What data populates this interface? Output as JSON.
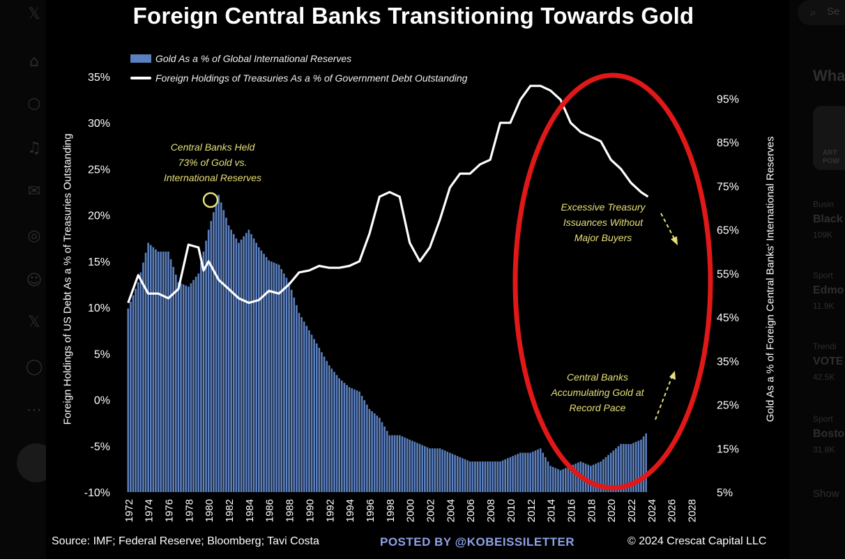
{
  "background_ui": {
    "left_rail_icons": [
      "x-logo",
      "home",
      "search",
      "notifications",
      "messages",
      "grok",
      "communities",
      "x-premium",
      "profile",
      "more"
    ],
    "search_placeholder": "Se",
    "side_heading": "Wha",
    "thumb_text": "ART\nPOW",
    "trends": [
      {
        "category": "Busin",
        "name": "Black",
        "count": "109K"
      },
      {
        "category": "Sport",
        "name": "Edmo",
        "count": "11.9K"
      },
      {
        "category": "Trendi",
        "name": "VOTE",
        "count": "42.5K"
      },
      {
        "category": "Sport",
        "name": "Bosto",
        "count": "31.8K"
      }
    ],
    "show_more": "Show"
  },
  "chart_data": {
    "type": "bar+line",
    "title": "Foreign Central Banks Transitioning Towards Gold",
    "legend": [
      {
        "label": "Gold As a % of Global International Reserves",
        "kind": "bar",
        "color": "#5b80c0"
      },
      {
        "label": "Foreign Holdings of Treasuries As a % of Government Debt Outstanding",
        "kind": "line",
        "color": "#ffffff"
      }
    ],
    "legend_position": "top-left",
    "x_tick_labels": [
      "1972",
      "1974",
      "1976",
      "1978",
      "1980",
      "1982",
      "1984",
      "1986",
      "1988",
      "1990",
      "1992",
      "1994",
      "1996",
      "1998",
      "2000",
      "2002",
      "2004",
      "2006",
      "2008",
      "2010",
      "2012",
      "2014",
      "2016",
      "2018",
      "2020",
      "2022",
      "2024",
      "2026",
      "2028"
    ],
    "xlim": [
      1971.6,
      2029
    ],
    "left_axis": {
      "label": "Foreign Holdings of US Debt As a % of  Treasuries Outstanding",
      "ticks": [
        "-10%",
        "-5%",
        "0%",
        "5%",
        "10%",
        "15%",
        "20%",
        "25%",
        "30%",
        "35%"
      ],
      "ylim": [
        -10,
        35
      ]
    },
    "right_axis": {
      "label": "Gold As a % of Foreign Central Banks' International Reserves",
      "ticks": [
        "5%",
        "15%",
        "25%",
        "35%",
        "45%",
        "55%",
        "65%",
        "75%",
        "85%",
        "95%"
      ],
      "ylim": [
        5,
        100
      ]
    },
    "gold_reserves_pct": {
      "x": [
        1972,
        1973,
        1974,
        1975,
        1976,
        1977,
        1978,
        1979,
        1980,
        1981,
        1982,
        1983,
        1984,
        1985,
        1986,
        1987,
        1988,
        1989,
        1990,
        1991,
        1992,
        1993,
        1994,
        1995,
        1996,
        1997,
        1998,
        1999,
        2000,
        2001,
        2002,
        2003,
        2004,
        2005,
        2006,
        2007,
        2008,
        2009,
        2010,
        2011,
        2012,
        2013,
        2014,
        2015,
        2016,
        2017,
        2018,
        2019,
        2020,
        2021,
        2022,
        2023,
        2023.7
      ],
      "y": [
        47,
        53,
        62,
        60,
        60,
        53,
        52,
        55,
        65,
        73,
        66,
        62,
        65,
        61,
        58,
        57,
        53,
        46,
        42,
        38,
        34,
        31,
        29,
        28,
        24,
        22,
        18,
        18,
        17,
        16,
        15,
        15,
        14,
        13,
        12,
        12,
        12,
        12,
        13,
        14,
        14,
        15,
        11,
        10,
        11,
        12,
        11,
        12,
        14,
        16,
        16,
        17,
        19
      ]
    },
    "foreign_treasuries_pct": {
      "x": [
        1972,
        1973,
        1974,
        1975,
        1976,
        1977,
        1978,
        1979,
        1979.5,
        1980,
        1981,
        1982,
        1983,
        1984,
        1985,
        1986,
        1987,
        1988,
        1989,
        1990,
        1991,
        1992,
        1993,
        1994,
        1995,
        1996,
        1997,
        1998,
        1999,
        2000,
        2001,
        2002,
        2003,
        2004,
        2005,
        2006,
        2007,
        2008,
        2009,
        2010,
        2011,
        2012,
        2013,
        2014,
        2015,
        2016,
        2017,
        2018,
        2019,
        2020,
        2021,
        2022,
        2023,
        2023.7
      ],
      "y": [
        10.5,
        13.5,
        11.5,
        11.5,
        11,
        12,
        16.8,
        16.5,
        14,
        15,
        13,
        12,
        11,
        10.5,
        10.8,
        11.8,
        11.5,
        12.5,
        13.8,
        14,
        14.5,
        14.3,
        14.3,
        14.5,
        15,
        18,
        22,
        22.5,
        22,
        17,
        15,
        16.5,
        19.5,
        23,
        24.5,
        24.5,
        25.5,
        26,
        30,
        30,
        32.5,
        34,
        34,
        33.5,
        32.5,
        30,
        29,
        28.5,
        28,
        26,
        25,
        23.5,
        22.5,
        22
      ]
    },
    "annotations": [
      {
        "text": [
          "Central Banks Held",
          "73% of Gold vs.",
          "International Reserves"
        ]
      },
      {
        "text": [
          "Excessive Treasury",
          "Issuances Without",
          "Major Buyers"
        ]
      },
      {
        "text": [
          "Central Banks",
          "Accumulating Gold at",
          "Record Pace"
        ]
      }
    ],
    "grid": false
  },
  "footer": {
    "source": "Source: IMF; Federal Reserve; Bloomberg; Tavi Costa",
    "posted_by": "POSTED BY @KOBEISSILETTER",
    "copyright": "© 2024 Crescat Capital LLC"
  },
  "colors": {
    "bars": "#5b80c0",
    "line": "#ffffff",
    "annotation": "#e6e079",
    "highlight_ellipse": "#e01818",
    "posted_by": "#8ea2e8"
  }
}
